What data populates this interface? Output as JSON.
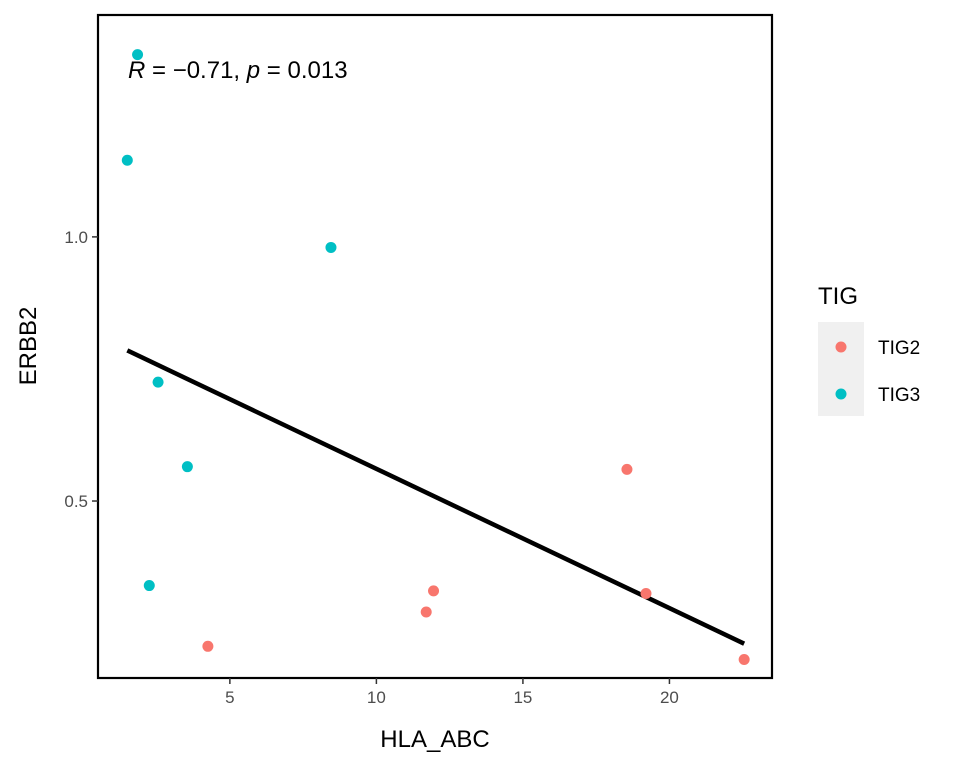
{
  "chart_data": {
    "type": "scatter",
    "xlabel": "HLA_ABC",
    "ylabel": "ERBB2",
    "xlim": [
      0.5,
      23.5
    ],
    "ylim": [
      0.165,
      1.42
    ],
    "x_ticks": [
      5,
      10,
      15,
      20
    ],
    "y_ticks": [
      0.5,
      1.0
    ],
    "x_tick_labels": [
      "5",
      "10",
      "15",
      "20"
    ],
    "y_tick_labels": [
      "0.5",
      "1.0"
    ],
    "grid": false,
    "annotation": {
      "r_symbol": "R",
      "r_text": " = −0.71, ",
      "p_symbol": "p",
      "p_text": " = 0.013"
    },
    "legend": {
      "title": "TIG",
      "placement": "right",
      "entries": [
        {
          "name": "TIG2",
          "color": "#F8766D"
        },
        {
          "name": "TIG3",
          "color": "#00BFC4"
        }
      ]
    },
    "series": [
      {
        "name": "TIG2",
        "color": "#F8766D",
        "points": [
          {
            "x": 4.25,
            "y": 0.225
          },
          {
            "x": 11.7,
            "y": 0.29
          },
          {
            "x": 11.95,
            "y": 0.33
          },
          {
            "x": 18.55,
            "y": 0.56
          },
          {
            "x": 19.2,
            "y": 0.325
          },
          {
            "x": 22.55,
            "y": 0.2
          }
        ]
      },
      {
        "name": "TIG3",
        "color": "#00BFC4",
        "points": [
          {
            "x": 1.85,
            "y": 1.345
          },
          {
            "x": 1.5,
            "y": 1.145
          },
          {
            "x": 8.45,
            "y": 0.98
          },
          {
            "x": 2.55,
            "y": 0.725
          },
          {
            "x": 3.55,
            "y": 0.565
          },
          {
            "x": 2.25,
            "y": 0.34
          }
        ]
      }
    ],
    "trendline": {
      "color": "#000000",
      "points": [
        {
          "x": 1.5,
          "y": 0.785
        },
        {
          "x": 22.55,
          "y": 0.23
        }
      ]
    }
  }
}
